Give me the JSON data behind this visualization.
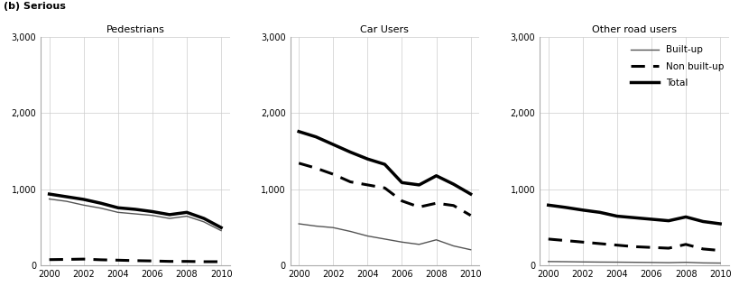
{
  "years": [
    2000,
    2001,
    2002,
    2003,
    2004,
    2005,
    2006,
    2007,
    2008,
    2009,
    2010
  ],
  "pedestrians": {
    "built_up": [
      870,
      840,
      790,
      750,
      695,
      675,
      655,
      615,
      645,
      570,
      455
    ],
    "non_built_up": [
      75,
      78,
      82,
      73,
      68,
      62,
      58,
      52,
      52,
      48,
      48
    ],
    "total": [
      935,
      900,
      865,
      815,
      755,
      735,
      705,
      665,
      695,
      615,
      495
    ]
  },
  "car_users": {
    "built_up": [
      545,
      515,
      495,
      445,
      385,
      345,
      305,
      275,
      335,
      255,
      205
    ],
    "non_built_up": [
      1340,
      1275,
      1195,
      1095,
      1055,
      1015,
      845,
      765,
      815,
      785,
      655
    ],
    "total": [
      1755,
      1685,
      1585,
      1485,
      1395,
      1325,
      1085,
      1055,
      1175,
      1065,
      935
    ]
  },
  "other_road_users": {
    "built_up": [
      50,
      48,
      45,
      43,
      42,
      40,
      38,
      35,
      40,
      32,
      30
    ],
    "non_built_up": [
      345,
      325,
      305,
      285,
      265,
      245,
      235,
      225,
      275,
      215,
      195
    ],
    "total": [
      790,
      760,
      725,
      695,
      645,
      625,
      605,
      585,
      635,
      575,
      545
    ]
  },
  "title": "(b) Serious",
  "subplot_titles": [
    "Pedestrians",
    "Car Users",
    "Other road users"
  ],
  "legend_labels": [
    "Built-up",
    "Non built-up",
    "Total"
  ],
  "ylim": [
    0,
    3000
  ],
  "yticks": [
    0,
    1000,
    2000,
    3000
  ],
  "ytick_labels": [
    "0",
    "1,000",
    "2,000",
    "3,000"
  ],
  "xticks": [
    2000,
    2002,
    2004,
    2006,
    2008,
    2010
  ],
  "grid_color": "#cccccc",
  "bg_color": "#ffffff"
}
